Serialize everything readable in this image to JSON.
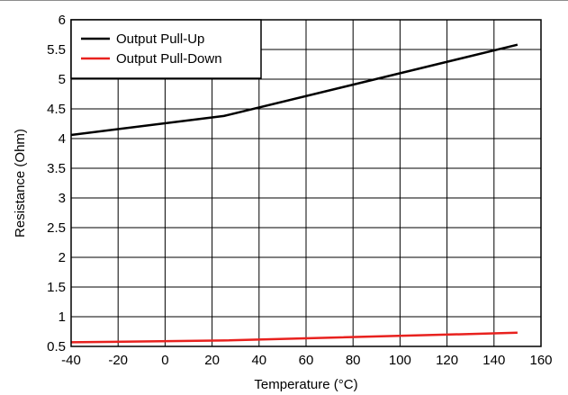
{
  "chart_data": {
    "type": "line",
    "title": "",
    "xlabel": "Temperature (°C)",
    "ylabel": "Resistance (Ohm)",
    "xlim": [
      -40,
      160
    ],
    "ylim": [
      0.5,
      6
    ],
    "x_ticks": [
      "-40",
      "-20",
      "0",
      "20",
      "40",
      "60",
      "80",
      "100",
      "120",
      "140",
      "160"
    ],
    "x_tick_values": [
      -40,
      -20,
      0,
      20,
      40,
      60,
      80,
      100,
      120,
      140,
      160
    ],
    "y_ticks": [
      "0.5",
      "1",
      "1.5",
      "2",
      "2.5",
      "3",
      "3.5",
      "4",
      "4.5",
      "5",
      "5.5",
      "6"
    ],
    "y_tick_values": [
      0.5,
      1,
      1.5,
      2,
      2.5,
      3,
      3.5,
      4,
      4.5,
      5,
      5.5,
      6
    ],
    "grid": true,
    "legend_position": "top-left",
    "series": [
      {
        "name": "Output Pull-Up",
        "color": "#000000",
        "x": [
          -40,
          25,
          150
        ],
        "y": [
          4.06,
          4.38,
          5.58
        ]
      },
      {
        "name": "Output Pull-Down",
        "color": "#e8211e",
        "x": [
          -40,
          25,
          150
        ],
        "y": [
          0.57,
          0.6,
          0.73
        ]
      }
    ]
  }
}
